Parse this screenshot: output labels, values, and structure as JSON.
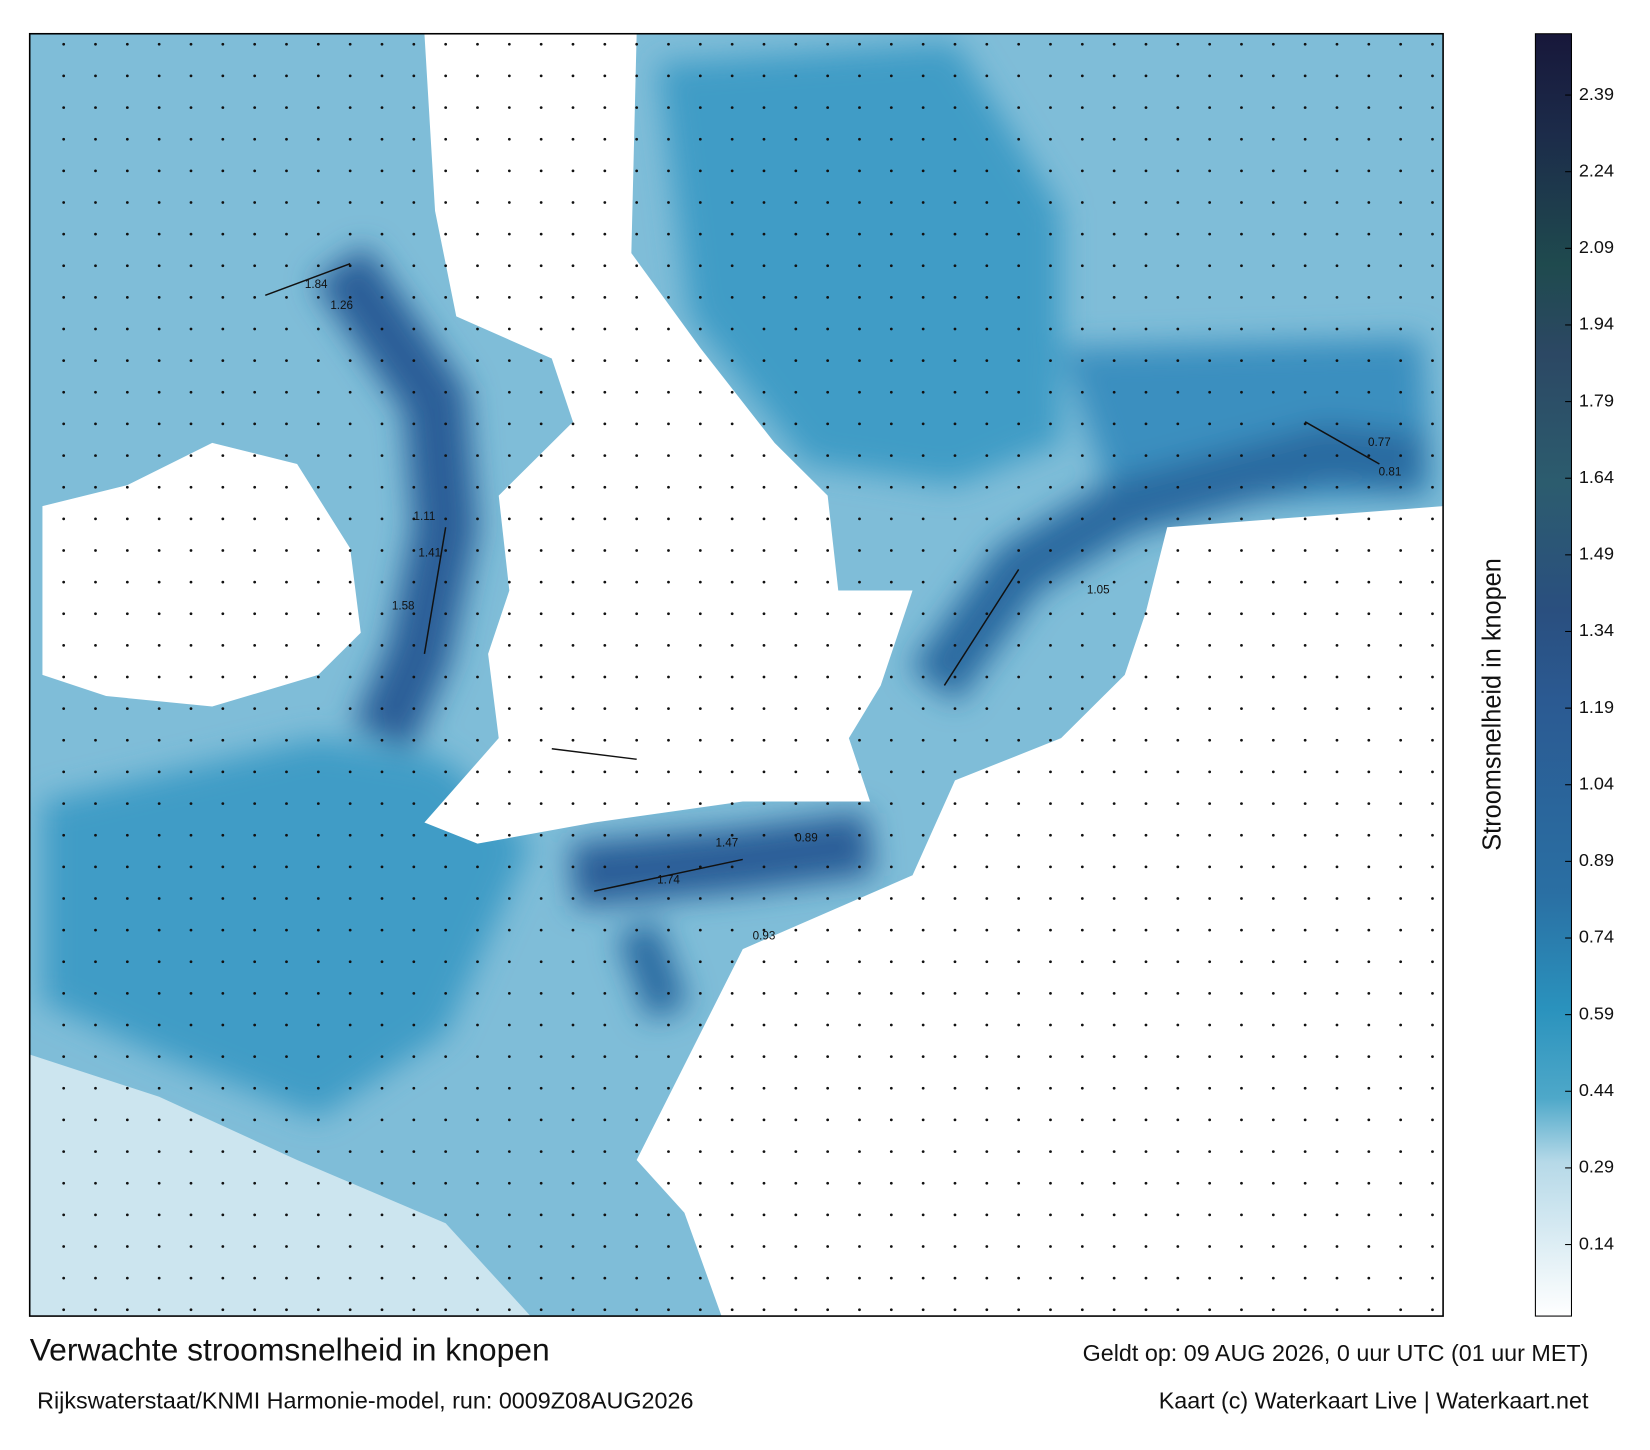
{
  "title": "Verwachte stroomsnelheid in knopen",
  "subtitle": "Rijkswaterstaat/KNMI Harmonie-model, run: 0009Z08AUG2026",
  "valid_time": "Geldt op: 09 AUG 2026, 0 uur UTC (01 uur MET)",
  "credit": "Kaart (c) Waterkaart Live | Waterkaart.net",
  "colorbar": {
    "label": "Stroomsnelheid in knopen",
    "lim": [
      0,
      2.51
    ],
    "ticks": [
      0.14,
      0.29,
      0.44,
      0.59,
      0.74,
      0.89,
      1.04,
      1.19,
      1.34,
      1.49,
      1.64,
      1.79,
      1.94,
      2.09,
      2.24,
      2.39
    ]
  },
  "map_labels": [
    1.58,
    1.41,
    1.11,
    1.84,
    1.26,
    1.47,
    1.74,
    1.05,
    0.77,
    0.81,
    0.89,
    0.93
  ]
}
